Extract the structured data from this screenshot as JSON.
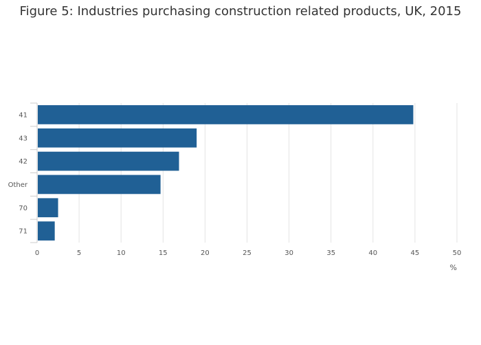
{
  "chart_data": {
    "type": "bar",
    "orientation": "horizontal",
    "title": "Figure 5: Industries purchasing construction related products, UK, 2015",
    "categories": [
      "41",
      "43",
      "42",
      "Other",
      "70",
      "71"
    ],
    "values": [
      44.8,
      19.0,
      16.9,
      14.7,
      2.5,
      2.1
    ],
    "xlabel": "%",
    "ylabel": "",
    "xlim": [
      0,
      50
    ],
    "xticks": [
      0,
      5,
      10,
      15,
      20,
      25,
      30,
      35,
      40,
      45,
      50
    ],
    "grid": true,
    "legend": "none",
    "bar_color": "#206095"
  }
}
